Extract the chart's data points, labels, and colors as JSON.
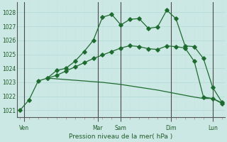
{
  "xlabel": "Pression niveau de la mer( hPa )",
  "ylim": [
    1020.5,
    1028.7
  ],
  "xlim": [
    -0.3,
    22.3
  ],
  "yticks": [
    1021,
    1022,
    1023,
    1024,
    1025,
    1026,
    1027,
    1028
  ],
  "background_color": "#cce8e4",
  "grid_color_h": "#b8dcd8",
  "grid_color_v": "#c8e4e0",
  "line_color": "#1e6b30",
  "day_labels": [
    "Ven",
    "Mar",
    "Sam",
    "Dim",
    "Lun"
  ],
  "day_positions": [
    0.5,
    8.5,
    11.0,
    16.5,
    21.0
  ],
  "vline_positions": [
    0.5,
    8.5,
    11.0,
    16.5,
    21.0
  ],
  "vline_color": "#4a4a4a",
  "series1_x": [
    0,
    1,
    2,
    3,
    4,
    5,
    6,
    7,
    8,
    9,
    10,
    11,
    12,
    13,
    14,
    15,
    16,
    17,
    18,
    19,
    20,
    21,
    22
  ],
  "series1_y": [
    1021.0,
    1021.75,
    1023.1,
    1023.3,
    1023.85,
    1024.0,
    1024.5,
    1025.2,
    1026.0,
    1027.65,
    1027.85,
    1027.1,
    1027.5,
    1027.55,
    1026.85,
    1026.95,
    1028.15,
    1027.55,
    1025.6,
    1025.55,
    1024.7,
    1022.65,
    1021.6
  ],
  "series2_x": [
    3,
    4,
    5,
    6,
    7,
    8,
    9,
    10,
    11,
    12,
    13,
    14,
    15,
    16,
    17,
    18,
    19,
    20,
    21,
    22
  ],
  "series2_y": [
    1023.3,
    1023.5,
    1023.8,
    1024.1,
    1024.4,
    1024.7,
    1024.95,
    1025.2,
    1025.45,
    1025.62,
    1025.55,
    1025.4,
    1025.35,
    1025.6,
    1025.55,
    1025.45,
    1024.5,
    1021.95,
    1021.85,
    1021.5
  ],
  "series3_x": [
    3,
    5,
    7,
    9,
    11,
    13,
    15,
    17,
    19,
    20,
    21,
    22
  ],
  "series3_y": [
    1023.3,
    1023.2,
    1023.1,
    1023.0,
    1022.85,
    1022.65,
    1022.45,
    1022.2,
    1021.95,
    1021.85,
    1021.85,
    1021.55
  ]
}
